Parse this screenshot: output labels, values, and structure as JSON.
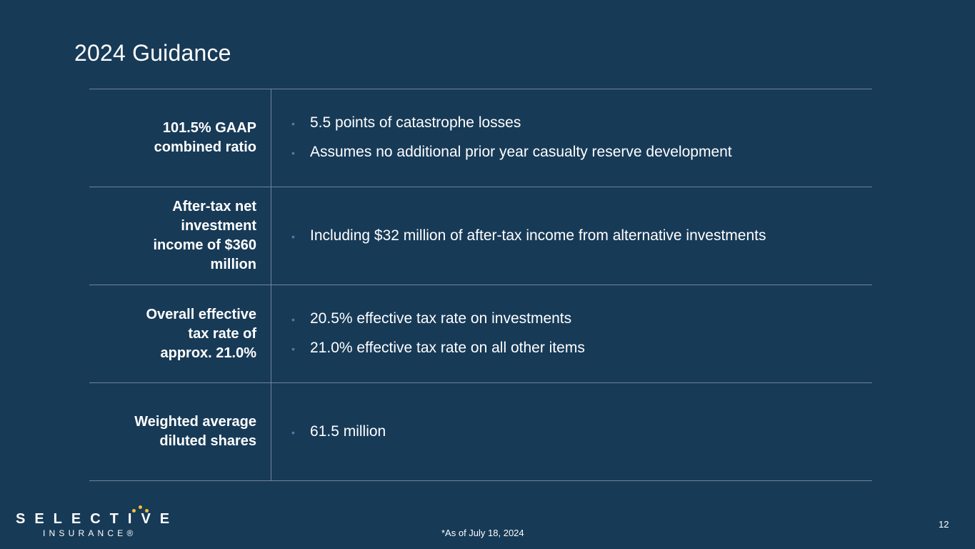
{
  "slide": {
    "title": "2024 Guidance",
    "page_number": "12",
    "footnote": "*As of July 18, 2024"
  },
  "rows": [
    {
      "label_lines": [
        "101.5% GAAP",
        "combined ratio"
      ],
      "bullets": [
        "5.5 points of catastrophe losses",
        "Assumes no additional prior year casualty reserve development"
      ]
    },
    {
      "label_lines": [
        "After-tax net",
        "investment",
        "income of $360",
        "million"
      ],
      "bullets": [
        "Including $32 million of after-tax income from alternative investments"
      ]
    },
    {
      "label_lines": [
        "Overall effective",
        "tax rate of",
        "approx. 21.0%"
      ],
      "bullets": [
        "20.5% effective tax rate on investments",
        "21.0% effective tax rate on all other items"
      ]
    },
    {
      "label_lines": [
        "Weighted average",
        "diluted shares"
      ],
      "bullets": [
        "61.5 million"
      ]
    }
  ],
  "logo": {
    "name": "SELECTIVE",
    "sub": "INSURANCE®",
    "dot_color": "#f2c230"
  },
  "colors": {
    "background": "#173a57",
    "divider": "#6f8596",
    "bullet": "#4a7fb0"
  }
}
